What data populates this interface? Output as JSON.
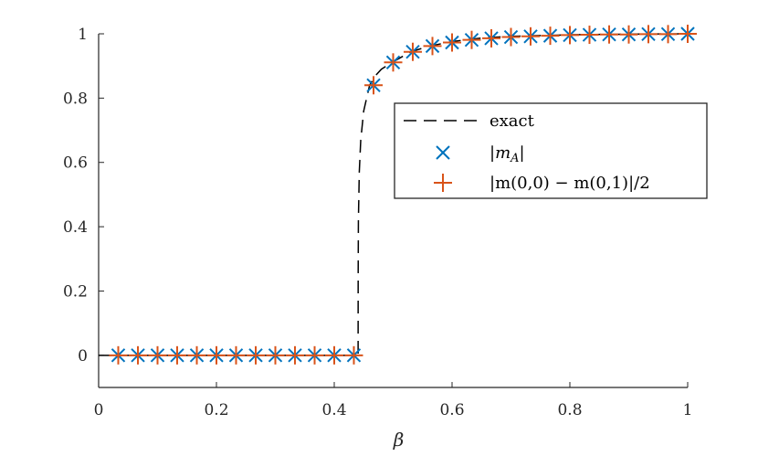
{
  "chart_data": {
    "type": "line",
    "title": "",
    "xlabel": "β",
    "ylabel": "",
    "xlim": [
      0,
      1
    ],
    "ylim": [
      -0.1,
      1
    ],
    "x_ticks": [
      "0",
      "0.2",
      "0.4",
      "0.6",
      "0.8",
      "1"
    ],
    "y_ticks": [
      "0",
      "0.2",
      "0.4",
      "0.6",
      "0.8",
      "1"
    ],
    "legend_position": "center-right",
    "grid": false,
    "series": [
      {
        "name": "exact",
        "style": "dashed-line",
        "color": "#000000",
        "x": [
          0.0,
          0.4405,
          0.4406,
          0.441,
          0.4425,
          0.445,
          0.45,
          0.46,
          0.47,
          0.48,
          0.5,
          0.53,
          0.56,
          0.6,
          0.65,
          0.7,
          0.8,
          0.9,
          1.0
        ],
        "values": [
          0.0,
          0.0,
          0.25,
          0.42,
          0.57,
          0.67,
          0.76,
          0.84,
          0.87,
          0.89,
          0.913,
          0.944,
          0.961,
          0.976,
          0.987,
          0.992,
          0.997,
          0.999,
          1.0
        ]
      },
      {
        "name": "|m_A|",
        "style": "x-marker",
        "color": "#0072BD",
        "x": [
          0.0333,
          0.0667,
          0.1,
          0.1333,
          0.1667,
          0.2,
          0.2333,
          0.2667,
          0.3,
          0.3333,
          0.3667,
          0.4,
          0.4333,
          0.4667,
          0.5,
          0.5333,
          0.5667,
          0.6,
          0.6333,
          0.6667,
          0.7,
          0.7333,
          0.7667,
          0.8,
          0.8333,
          0.8667,
          0.9,
          0.9333,
          0.9667,
          1.0
        ],
        "values": [
          0,
          0,
          0,
          0,
          0,
          0,
          0,
          0,
          0,
          0,
          0,
          0,
          0,
          0.84,
          0.911,
          0.944,
          0.962,
          0.973,
          0.981,
          0.986,
          0.99,
          0.992,
          0.994,
          0.996,
          0.997,
          0.998,
          0.998,
          0.999,
          0.999,
          1.0
        ]
      },
      {
        "name": "|m(0,0) − m(0,1)|/2",
        "style": "plus-marker",
        "color": "#D95319",
        "x": [
          0.0333,
          0.0667,
          0.1,
          0.1333,
          0.1667,
          0.2,
          0.2333,
          0.2667,
          0.3,
          0.3333,
          0.3667,
          0.4,
          0.4333,
          0.4667,
          0.5,
          0.5333,
          0.5667,
          0.6,
          0.6333,
          0.6667,
          0.7,
          0.7333,
          0.7667,
          0.8,
          0.8333,
          0.8667,
          0.9,
          0.9333,
          0.9667,
          1.0
        ],
        "values": [
          0,
          0,
          0,
          0,
          0,
          0,
          0,
          0,
          0,
          0,
          0,
          0,
          0,
          0.84,
          0.911,
          0.944,
          0.962,
          0.973,
          0.981,
          0.986,
          0.99,
          0.992,
          0.994,
          0.996,
          0.997,
          0.998,
          0.998,
          0.999,
          0.999,
          1.0
        ]
      }
    ],
    "legend": {
      "entries": [
        {
          "label": "exact"
        },
        {
          "label": "|m_A|"
        },
        {
          "label": "|m(0,0) − m(0,1)|/2"
        }
      ]
    }
  }
}
